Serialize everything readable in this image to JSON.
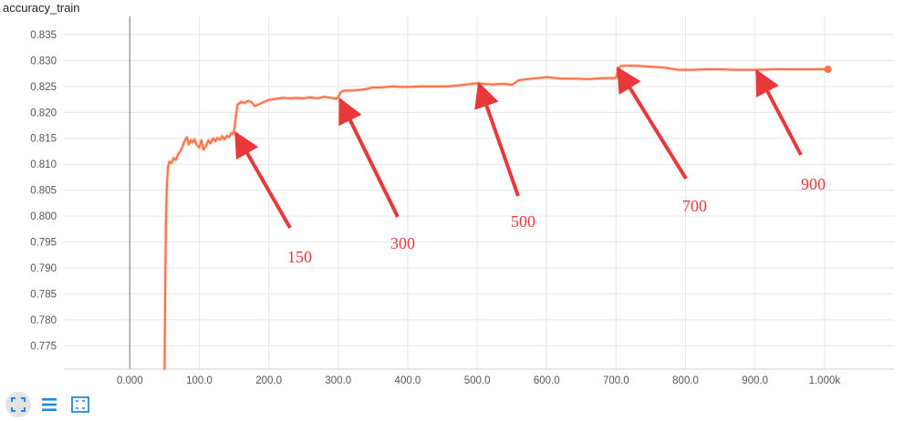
{
  "chart_data": {
    "type": "line",
    "title": "accuracy_train",
    "xlabel": "",
    "ylabel": "",
    "xlim": [
      -95,
      1100
    ],
    "ylim": [
      0.7705,
      0.8385
    ],
    "x_ticks": [
      0,
      100,
      200,
      300,
      400,
      500,
      600,
      700,
      800,
      900,
      1000
    ],
    "x_tick_labels": [
      "0.000",
      "100.0",
      "200.0",
      "300.0",
      "400.0",
      "500.0",
      "600.0",
      "700.0",
      "800.0",
      "900.0",
      "1.000k"
    ],
    "y_ticks": [
      0.775,
      0.78,
      0.785,
      0.79,
      0.795,
      0.8,
      0.805,
      0.81,
      0.815,
      0.82,
      0.825,
      0.83,
      0.835
    ],
    "y_tick_labels": [
      "0.775",
      "0.780",
      "0.785",
      "0.790",
      "0.795",
      "0.800",
      "0.805",
      "0.810",
      "0.815",
      "0.820",
      "0.825",
      "0.830",
      "0.835"
    ],
    "grid": true,
    "series": [
      {
        "color": "#ff7043",
        "x": [
          50,
          50.5,
          51,
          52,
          53,
          54,
          55,
          57,
          60,
          63,
          66,
          70,
          74,
          78,
          82,
          85,
          88,
          90,
          93,
          96,
          100,
          103,
          106,
          110,
          113,
          116,
          120,
          123,
          126,
          130,
          133,
          136,
          140,
          143,
          146,
          148,
          150,
          152,
          155,
          160,
          165,
          170,
          175,
          180,
          190,
          200,
          210,
          220,
          230,
          240,
          250,
          260,
          270,
          280,
          290,
          297,
          300,
          303,
          306,
          310,
          320,
          330,
          340,
          350,
          360,
          370,
          380,
          390,
          400,
          420,
          440,
          460,
          480,
          500,
          520,
          540,
          550,
          560,
          580,
          600,
          620,
          640,
          660,
          680,
          695,
          700,
          703,
          706,
          710,
          730,
          750,
          770,
          790,
          810,
          830,
          850,
          870,
          900,
          930,
          960,
          990,
          1005
        ],
        "y": [
          0.7705,
          0.779,
          0.788,
          0.7985,
          0.8045,
          0.8075,
          0.8095,
          0.8105,
          0.8102,
          0.8112,
          0.8108,
          0.812,
          0.8128,
          0.8142,
          0.8152,
          0.8138,
          0.8147,
          0.8142,
          0.8148,
          0.8138,
          0.8132,
          0.8146,
          0.8128,
          0.8136,
          0.8146,
          0.814,
          0.815,
          0.8144,
          0.8151,
          0.8147,
          0.8154,
          0.8148,
          0.8155,
          0.8152,
          0.816,
          0.8158,
          0.8164,
          0.8185,
          0.8215,
          0.822,
          0.8218,
          0.8222,
          0.822,
          0.8212,
          0.8218,
          0.8224,
          0.8226,
          0.8228,
          0.8227,
          0.8228,
          0.8227,
          0.8229,
          0.8227,
          0.823,
          0.8228,
          0.8226,
          0.8229,
          0.8238,
          0.8241,
          0.8242,
          0.8242,
          0.8243,
          0.8245,
          0.8248,
          0.8248,
          0.8249,
          0.825,
          0.8249,
          0.8249,
          0.825,
          0.825,
          0.825,
          0.8253,
          0.8256,
          0.8254,
          0.8255,
          0.8253,
          0.8262,
          0.8265,
          0.8268,
          0.8265,
          0.8265,
          0.8264,
          0.8266,
          0.8266,
          0.8267,
          0.8282,
          0.8289,
          0.829,
          0.829,
          0.8288,
          0.8286,
          0.8282,
          0.8282,
          0.8283,
          0.8283,
          0.8282,
          0.8282,
          0.8283,
          0.8283,
          0.8283,
          0.8283
        ]
      }
    ],
    "annotations": [
      {
        "label": "150",
        "at": [
          150,
          0.8163
        ]
      },
      {
        "label": "300",
        "at": [
          300,
          0.8228
        ]
      },
      {
        "label": "500",
        "at": [
          500,
          0.8258
        ]
      },
      {
        "label": "700",
        "at": [
          700,
          0.8288
        ]
      },
      {
        "label": "900",
        "at": [
          900,
          0.8283
        ]
      }
    ]
  },
  "toolbar": {
    "icons": [
      "fit-domain-icon",
      "toggle-log-icon",
      "fit-to-data-icon"
    ]
  }
}
